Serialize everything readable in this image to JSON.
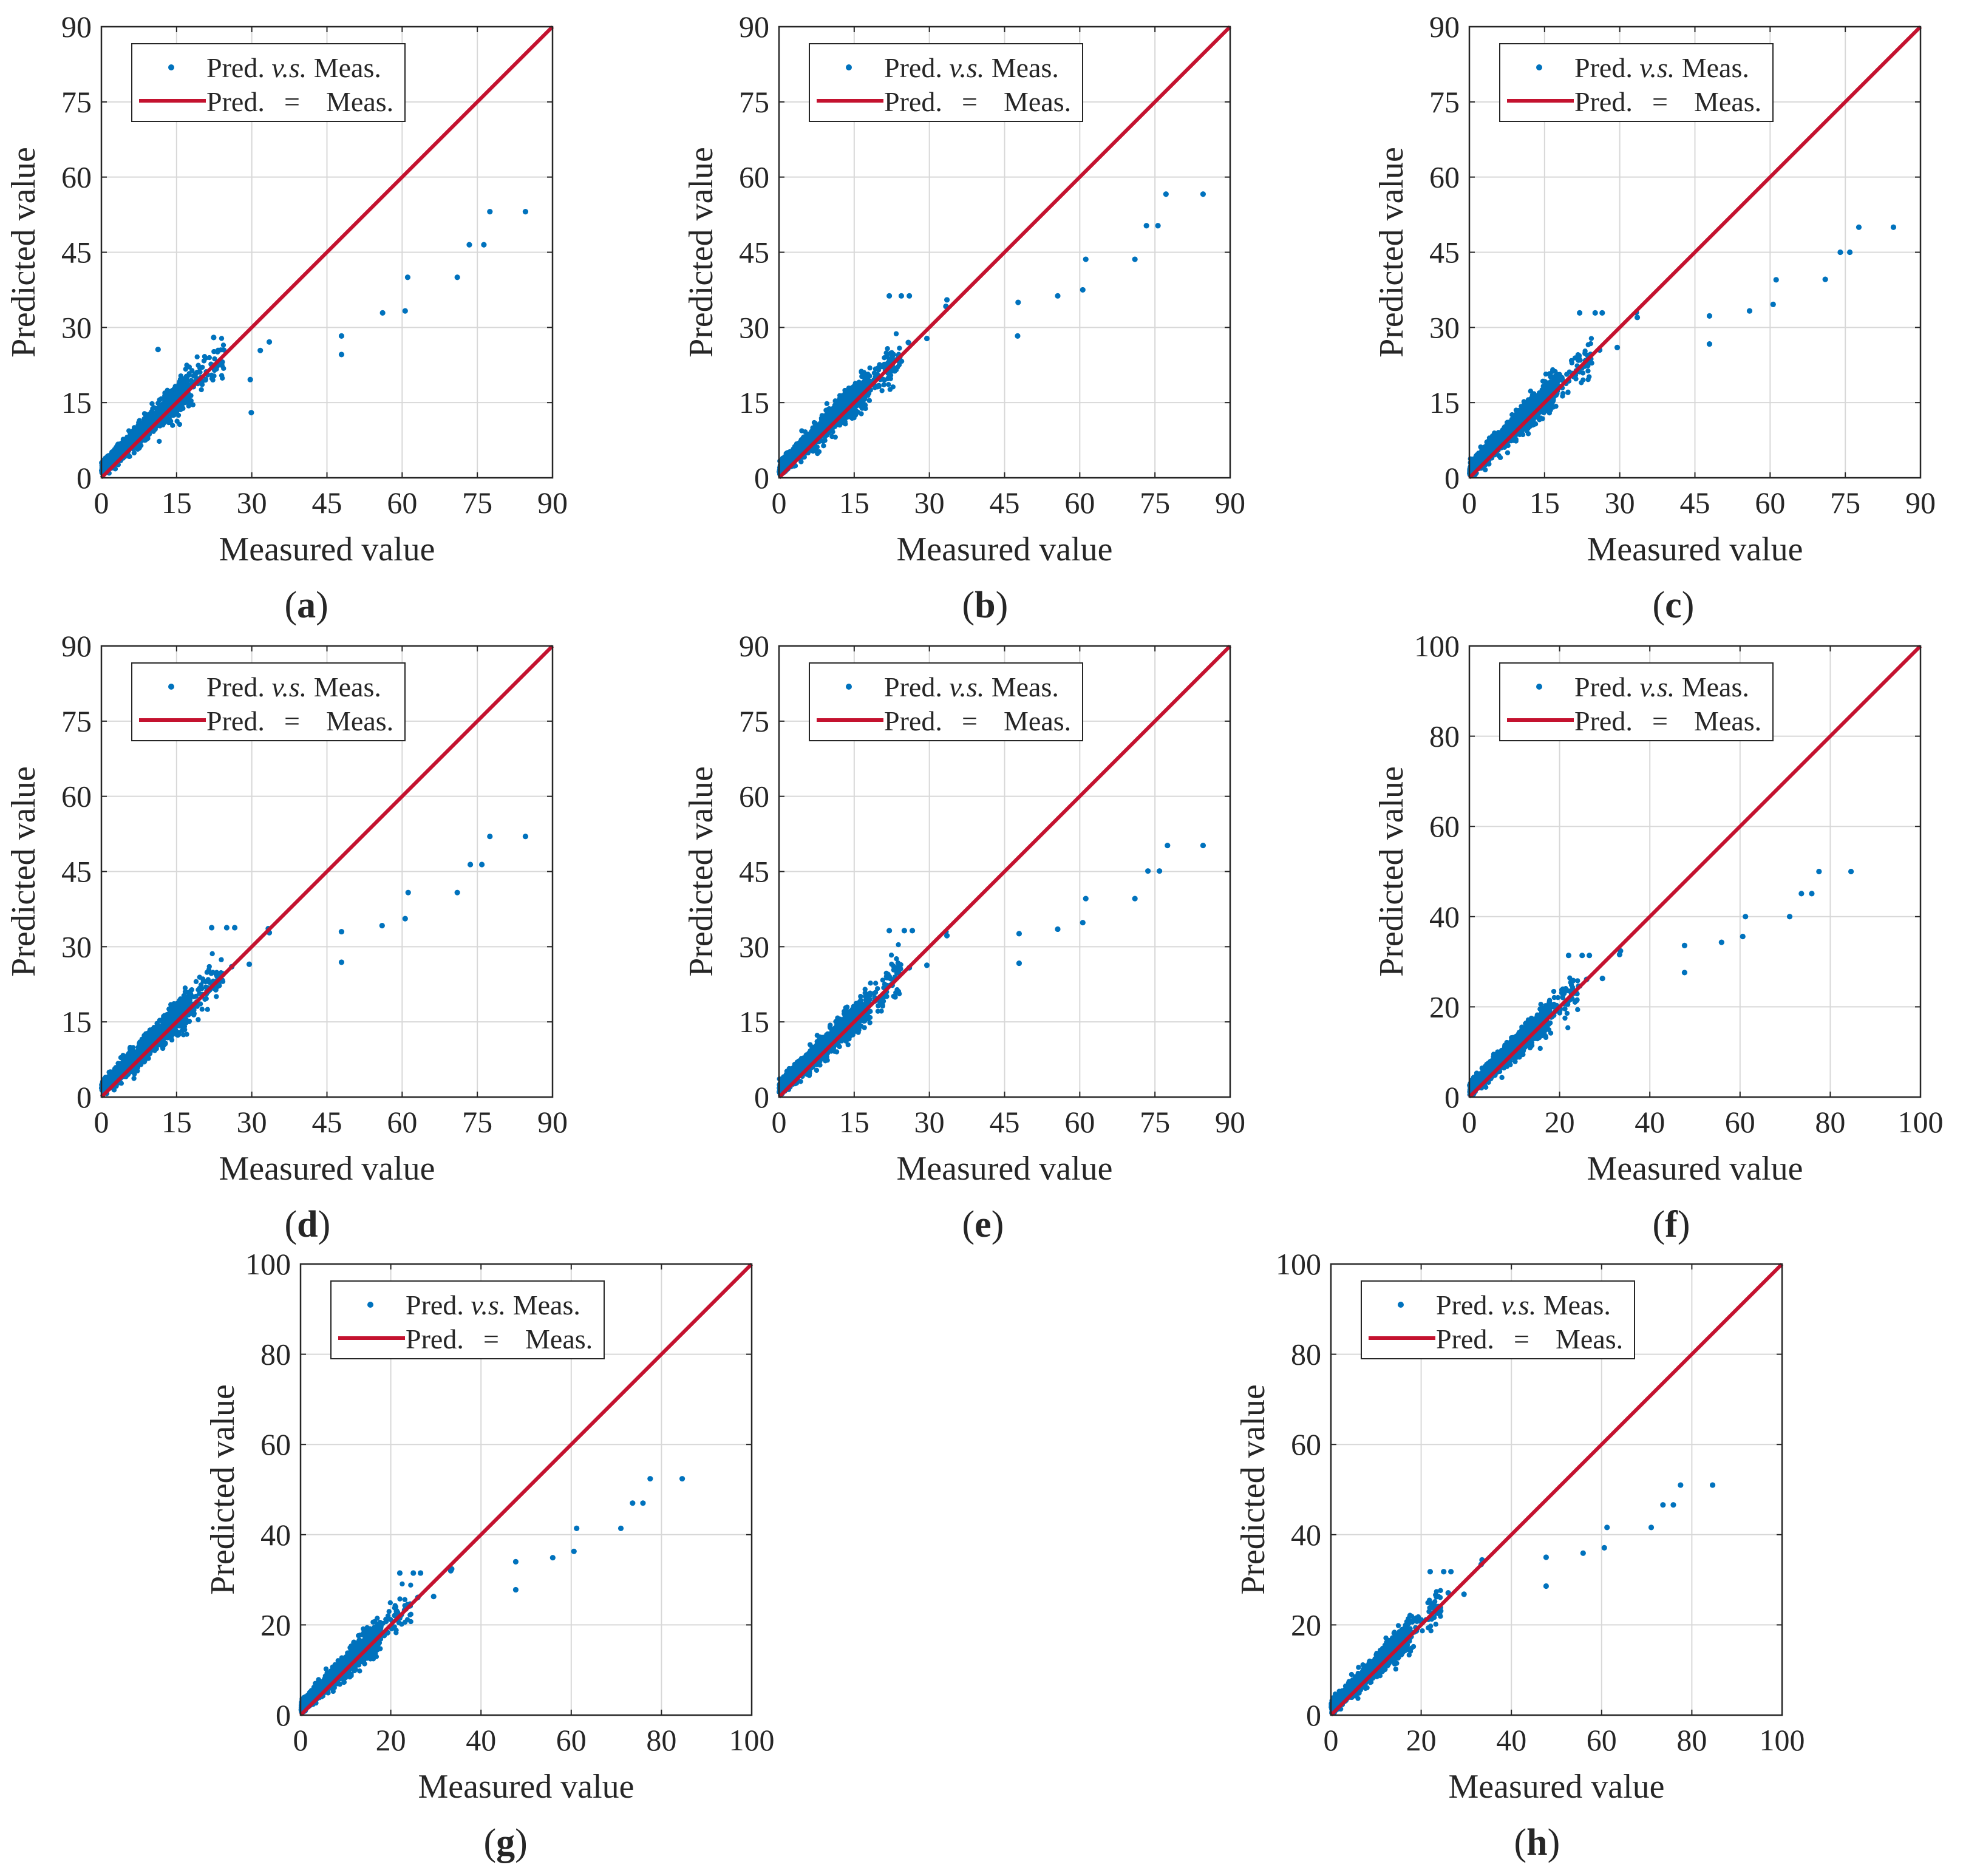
{
  "colors": {
    "scatter": "#0072BD",
    "identity_line": "#C4122F",
    "grid": "#d8d8d8",
    "axes": "#262626"
  },
  "chart_data": [
    {
      "id": "a",
      "panel_label": "a",
      "type": "scatter",
      "xlabel": "Measured value",
      "ylabel": "Predicted value",
      "xlim": [
        0,
        90
      ],
      "ylim": [
        0,
        90
      ],
      "xticks": [
        0,
        15,
        30,
        45,
        60,
        75,
        90
      ],
      "yticks": [
        0,
        15,
        30,
        45,
        60,
        75,
        90
      ],
      "grid": true,
      "legend_position": "top-left",
      "legend": [
        {
          "marker": "dot",
          "parts": [
            "Pred. ",
            "v.s.",
            " Meas."
          ]
        },
        {
          "marker": "line",
          "parts": [
            "Pred.",
            "=",
            "Meas."
          ]
        }
      ],
      "outliers": [
        [
          47.9,
          28.3
        ],
        [
          47.9,
          24.6
        ],
        [
          56.1,
          32.9
        ],
        [
          61.1,
          40.0
        ],
        [
          60.6,
          33.3
        ],
        [
          71.0,
          40.0
        ],
        [
          73.4,
          46.5
        ],
        [
          76.3,
          46.5
        ],
        [
          77.5,
          53.1
        ],
        [
          84.6,
          53.1
        ],
        [
          33.5,
          27.1
        ],
        [
          31.7,
          25.4
        ],
        [
          29.7,
          19.6
        ],
        [
          29.9,
          13.0
        ],
        [
          22.4,
          28.0
        ],
        [
          11.3,
          25.6
        ],
        [
          24.1,
          23.1
        ]
      ],
      "series": [
        {
          "name": "Pred. v.s. Meas.",
          "kind": "scatter",
          "summary": {
            "n": 1500,
            "x_range": [
              0,
              30
            ],
            "note": "dense cluster about 0-30 of measured value along the diagonal, predictions above the line at low values"
          }
        },
        {
          "name": "Pred. = Meas.",
          "kind": "line",
          "x": [
            0,
            90
          ],
          "y": [
            0,
            90
          ]
        }
      ]
    },
    {
      "id": "b",
      "panel_label": "b",
      "type": "scatter",
      "xlabel": "Measured value",
      "ylabel": "Predicted value",
      "xlim": [
        0,
        90
      ],
      "ylim": [
        0,
        90
      ],
      "xticks": [
        0,
        15,
        30,
        45,
        60,
        75,
        90
      ],
      "yticks": [
        0,
        15,
        30,
        45,
        60,
        75,
        90
      ],
      "grid": true,
      "legend_position": "top-left",
      "legend": [
        {
          "marker": "dot",
          "parts": [
            "Pred. ",
            "v.s.",
            " Meas."
          ]
        },
        {
          "marker": "line",
          "parts": [
            "Pred.",
            "=",
            "Meas."
          ]
        }
      ],
      "outliers": [
        [
          47.7,
          35.0
        ],
        [
          47.6,
          28.3
        ],
        [
          55.6,
          36.3
        ],
        [
          60.6,
          37.5
        ],
        [
          61.2,
          43.6
        ],
        [
          71.0,
          43.6
        ],
        [
          73.3,
          50.3
        ],
        [
          75.6,
          50.3
        ],
        [
          77.2,
          56.6
        ],
        [
          84.6,
          56.6
        ],
        [
          22.0,
          36.3
        ],
        [
          24.4,
          36.3
        ],
        [
          26.0,
          36.3
        ],
        [
          33.5,
          35.5
        ],
        [
          33.3,
          34.2
        ],
        [
          29.5,
          27.8
        ],
        [
          25.8,
          27.0
        ]
      ],
      "series": [
        {
          "name": "Pred. v.s. Meas.",
          "kind": "scatter",
          "summary": {
            "n": 1500,
            "x_range": [
              0,
              30
            ]
          }
        },
        {
          "name": "Pred. = Meas.",
          "kind": "line",
          "x": [
            0,
            90
          ],
          "y": [
            0,
            90
          ]
        }
      ]
    },
    {
      "id": "c",
      "panel_label": "c",
      "type": "scatter",
      "xlabel": "Measured value",
      "ylabel": "Predicted value",
      "xlim": [
        0,
        90
      ],
      "ylim": [
        0,
        90
      ],
      "xticks": [
        0,
        15,
        30,
        45,
        60,
        75,
        90
      ],
      "yticks": [
        0,
        15,
        30,
        45,
        60,
        75,
        90
      ],
      "grid": true,
      "legend_position": "top-left",
      "legend": [
        {
          "marker": "dot",
          "parts": [
            "Pred. ",
            "v.s.",
            " Meas."
          ]
        },
        {
          "marker": "line",
          "parts": [
            "Pred.",
            "=",
            "Meas."
          ]
        }
      ],
      "outliers": [
        [
          47.9,
          32.3
        ],
        [
          47.9,
          26.7
        ],
        [
          55.9,
          33.3
        ],
        [
          60.6,
          34.6
        ],
        [
          61.2,
          39.5
        ],
        [
          71.0,
          39.6
        ],
        [
          74.0,
          45.0
        ],
        [
          75.9,
          45.0
        ],
        [
          77.7,
          50.0
        ],
        [
          84.6,
          50.0
        ],
        [
          22.0,
          32.9
        ],
        [
          25.1,
          32.9
        ],
        [
          26.5,
          32.9
        ],
        [
          33.5,
          32.0
        ],
        [
          33.3,
          33.0
        ],
        [
          29.5,
          26.0
        ],
        [
          26.0,
          25.5
        ]
      ],
      "series": [
        {
          "name": "Pred. v.s. Meas.",
          "kind": "scatter",
          "summary": {
            "n": 1500,
            "x_range": [
              0,
              30
            ]
          }
        },
        {
          "name": "Pred. = Meas.",
          "kind": "line",
          "x": [
            0,
            90
          ],
          "y": [
            0,
            90
          ]
        }
      ]
    },
    {
      "id": "d",
      "panel_label": "d",
      "type": "scatter",
      "xlabel": "Measured value",
      "ylabel": "Predicted value",
      "xlim": [
        0,
        90
      ],
      "ylim": [
        0,
        90
      ],
      "xticks": [
        0,
        15,
        30,
        45,
        60,
        75,
        90
      ],
      "yticks": [
        0,
        15,
        30,
        45,
        60,
        75,
        90
      ],
      "grid": true,
      "legend_position": "top-left",
      "legend": [
        {
          "marker": "dot",
          "parts": [
            "Pred. ",
            "v.s.",
            " Meas."
          ]
        },
        {
          "marker": "line",
          "parts": [
            "Pred.",
            "=",
            "Meas."
          ]
        }
      ],
      "outliers": [
        [
          47.9,
          33.0
        ],
        [
          47.9,
          26.9
        ],
        [
          56.0,
          34.2
        ],
        [
          60.6,
          35.6
        ],
        [
          61.2,
          40.8
        ],
        [
          71.0,
          40.8
        ],
        [
          73.6,
          46.4
        ],
        [
          75.9,
          46.4
        ],
        [
          77.5,
          52.0
        ],
        [
          84.6,
          52.0
        ],
        [
          22.0,
          33.8
        ],
        [
          25.0,
          33.8
        ],
        [
          26.6,
          33.8
        ],
        [
          33.5,
          32.8
        ],
        [
          33.3,
          33.6
        ],
        [
          29.5,
          26.5
        ],
        [
          26.0,
          26.0
        ]
      ],
      "series": [
        {
          "name": "Pred. v.s. Meas.",
          "kind": "scatter",
          "summary": {
            "n": 1500,
            "x_range": [
              0,
              30
            ]
          }
        },
        {
          "name": "Pred. = Meas.",
          "kind": "line",
          "x": [
            0,
            90
          ],
          "y": [
            0,
            90
          ]
        }
      ]
    },
    {
      "id": "e",
      "panel_label": "e",
      "type": "scatter",
      "xlabel": "Measured value",
      "ylabel": "Predicted value",
      "xlim": [
        0,
        90
      ],
      "ylim": [
        0,
        90
      ],
      "xticks": [
        0,
        15,
        30,
        45,
        60,
        75,
        90
      ],
      "yticks": [
        0,
        15,
        30,
        45,
        60,
        75,
        90
      ],
      "grid": true,
      "legend_position": "top-left",
      "legend": [
        {
          "marker": "dot",
          "parts": [
            "Pred. ",
            "v.s.",
            " Meas."
          ]
        },
        {
          "marker": "line",
          "parts": [
            "Pred.",
            "=",
            "Meas."
          ]
        }
      ],
      "outliers": [
        [
          47.9,
          32.6
        ],
        [
          47.9,
          26.7
        ],
        [
          55.6,
          33.5
        ],
        [
          60.6,
          34.8
        ],
        [
          61.2,
          39.6
        ],
        [
          71.0,
          39.6
        ],
        [
          73.6,
          45.1
        ],
        [
          75.9,
          45.1
        ],
        [
          77.5,
          50.2
        ],
        [
          84.6,
          50.2
        ],
        [
          22.0,
          33.2
        ],
        [
          25.0,
          33.2
        ],
        [
          26.6,
          33.2
        ],
        [
          33.5,
          32.2
        ],
        [
          33.3,
          33.0
        ],
        [
          29.5,
          26.3
        ],
        [
          26.0,
          25.8
        ]
      ],
      "series": [
        {
          "name": "Pred. v.s. Meas.",
          "kind": "scatter",
          "summary": {
            "n": 1500,
            "x_range": [
              0,
              30
            ]
          }
        },
        {
          "name": "Pred. = Meas.",
          "kind": "line",
          "x": [
            0,
            90
          ],
          "y": [
            0,
            90
          ]
        }
      ]
    },
    {
      "id": "f",
      "panel_label": "f",
      "type": "scatter",
      "xlabel": "Measured value",
      "ylabel": "Predicted value",
      "xlim": [
        0,
        100
      ],
      "ylim": [
        0,
        100
      ],
      "xticks": [
        0,
        20,
        40,
        60,
        80,
        100
      ],
      "yticks": [
        0,
        20,
        40,
        60,
        80,
        100
      ],
      "grid": true,
      "legend_position": "top-left",
      "legend": [
        {
          "marker": "dot",
          "parts": [
            "Pred. ",
            "v.s.",
            " Meas."
          ]
        },
        {
          "marker": "line",
          "parts": [
            "Pred.",
            "=",
            "Meas."
          ]
        }
      ],
      "outliers": [
        [
          47.7,
          33.6
        ],
        [
          47.7,
          27.6
        ],
        [
          55.9,
          34.3
        ],
        [
          60.6,
          35.6
        ],
        [
          61.2,
          40.0
        ],
        [
          71.0,
          40.0
        ],
        [
          73.6,
          45.1
        ],
        [
          75.9,
          45.1
        ],
        [
          77.5,
          50.0
        ],
        [
          84.6,
          50.0
        ],
        [
          22.0,
          31.4
        ],
        [
          25.0,
          31.4
        ],
        [
          26.6,
          31.4
        ],
        [
          33.5,
          32.4
        ],
        [
          33.3,
          31.6
        ],
        [
          29.5,
          26.3
        ],
        [
          26.0,
          26.1
        ]
      ],
      "series": [
        {
          "name": "Pred. v.s. Meas.",
          "kind": "scatter",
          "summary": {
            "n": 1500,
            "x_range": [
              0,
              30
            ]
          }
        },
        {
          "name": "Pred. = Meas.",
          "kind": "line",
          "x": [
            0,
            100
          ],
          "y": [
            0,
            100
          ]
        }
      ]
    },
    {
      "id": "g",
      "panel_label": "g",
      "type": "scatter",
      "xlabel": "Measured value",
      "ylabel": "Predicted value",
      "xlim": [
        0,
        100
      ],
      "ylim": [
        0,
        100
      ],
      "xticks": [
        0,
        20,
        40,
        60,
        80,
        100
      ],
      "yticks": [
        0,
        20,
        40,
        60,
        80,
        100
      ],
      "grid": true,
      "legend_position": "top-left",
      "legend": [
        {
          "marker": "dot",
          "parts": [
            "Pred. ",
            "v.s.",
            " Meas."
          ]
        },
        {
          "marker": "line",
          "parts": [
            "Pred.",
            "=",
            "Meas."
          ]
        }
      ],
      "outliers": [
        [
          47.7,
          34.0
        ],
        [
          47.7,
          27.8
        ],
        [
          55.9,
          34.9
        ],
        [
          60.6,
          36.3
        ],
        [
          61.2,
          41.4
        ],
        [
          71.0,
          41.4
        ],
        [
          73.6,
          47.0
        ],
        [
          75.9,
          47.0
        ],
        [
          77.5,
          52.4
        ],
        [
          84.6,
          52.4
        ],
        [
          22.0,
          31.5
        ],
        [
          25.0,
          31.5
        ],
        [
          26.6,
          31.5
        ],
        [
          33.5,
          32.4
        ],
        [
          33.3,
          32.0
        ],
        [
          29.5,
          26.3
        ],
        [
          26.0,
          26.1
        ]
      ],
      "series": [
        {
          "name": "Pred. v.s. Meas.",
          "kind": "scatter",
          "summary": {
            "n": 1500,
            "x_range": [
              0,
              30
            ]
          }
        },
        {
          "name": "Pred. = Meas.",
          "kind": "line",
          "x": [
            0,
            100
          ],
          "y": [
            0,
            100
          ]
        }
      ]
    },
    {
      "id": "h",
      "panel_label": "h",
      "type": "scatter",
      "xlabel": "Measured value",
      "ylabel": "Predicted value",
      "xlim": [
        0,
        100
      ],
      "ylim": [
        0,
        100
      ],
      "xticks": [
        0,
        20,
        40,
        60,
        80,
        100
      ],
      "yticks": [
        0,
        20,
        40,
        60,
        80,
        100
      ],
      "grid": true,
      "legend_position": "top-left",
      "legend": [
        {
          "marker": "dot",
          "parts": [
            "Pred. ",
            "v.s.",
            " Meas."
          ]
        },
        {
          "marker": "line",
          "parts": [
            "Pred.",
            "=",
            "Meas."
          ]
        }
      ],
      "outliers": [
        [
          47.7,
          35.0
        ],
        [
          47.7,
          28.6
        ],
        [
          55.9,
          35.9
        ],
        [
          60.6,
          37.1
        ],
        [
          61.2,
          41.6
        ],
        [
          71.0,
          41.6
        ],
        [
          73.6,
          46.6
        ],
        [
          75.9,
          46.6
        ],
        [
          77.5,
          51.0
        ],
        [
          84.6,
          51.0
        ],
        [
          22.0,
          31.8
        ],
        [
          25.0,
          31.8
        ],
        [
          26.6,
          31.8
        ],
        [
          33.5,
          34.4
        ],
        [
          33.3,
          33.4
        ],
        [
          29.5,
          26.8
        ],
        [
          26.0,
          27.1
        ]
      ],
      "series": [
        {
          "name": "Pred. v.s. Meas.",
          "kind": "scatter",
          "summary": {
            "n": 1500,
            "x_range": [
              0,
              30
            ]
          }
        },
        {
          "name": "Pred. = Meas.",
          "kind": "line",
          "x": [
            0,
            100
          ],
          "y": [
            0,
            100
          ]
        }
      ]
    }
  ]
}
